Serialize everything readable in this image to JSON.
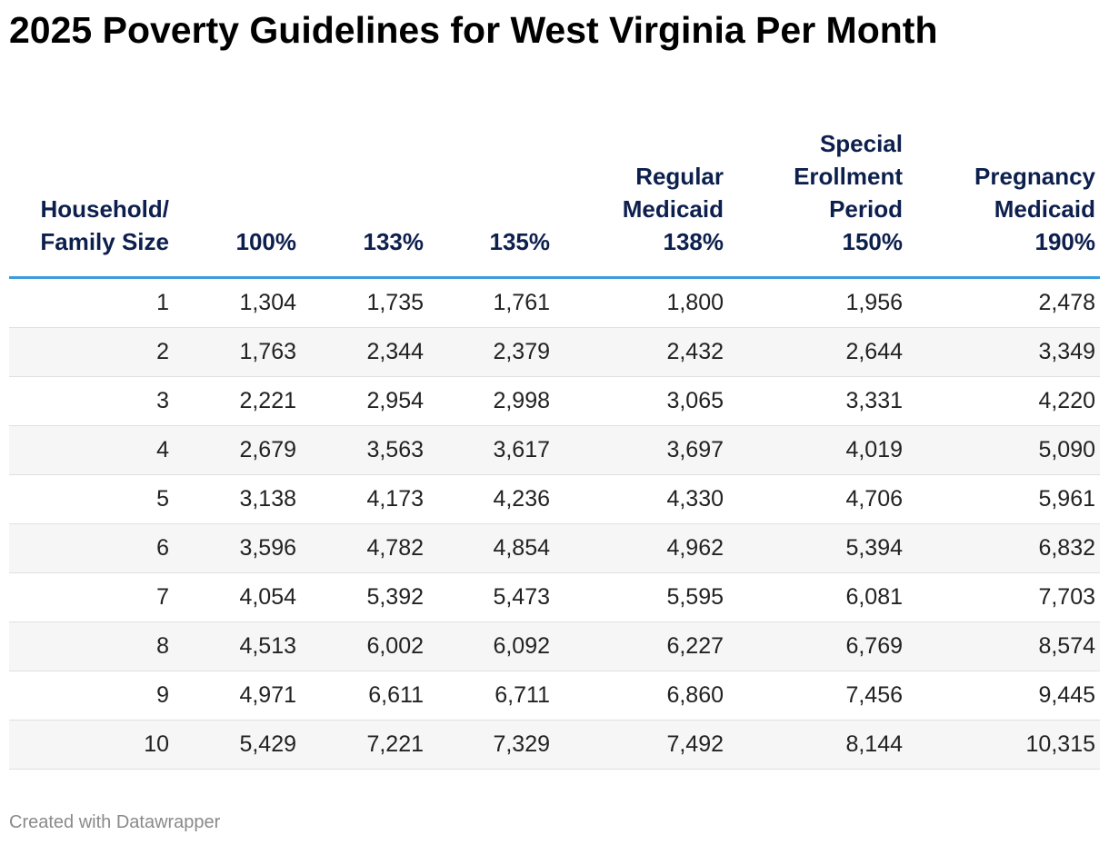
{
  "title": "2025 Poverty Guidelines for West Virginia Per Month",
  "table": {
    "header": [
      [
        "Household/",
        "Family Size"
      ],
      [
        "100%"
      ],
      [
        "133%"
      ],
      [
        "135%"
      ],
      [
        "Regular",
        "Medicaid",
        "138%"
      ],
      [
        "Special",
        "Erollment",
        "Period",
        "150%"
      ],
      [
        "Pregnancy",
        "Medicaid",
        "190%"
      ]
    ],
    "rows": [
      [
        "1",
        "1,304",
        "1,735",
        "1,761",
        "1,800",
        "1,956",
        "2,478"
      ],
      [
        "2",
        "1,763",
        "2,344",
        "2,379",
        "2,432",
        "2,644",
        "3,349"
      ],
      [
        "3",
        "2,221",
        "2,954",
        "2,998",
        "3,065",
        "3,331",
        "4,220"
      ],
      [
        "4",
        "2,679",
        "3,563",
        "3,617",
        "3,697",
        "4,019",
        "5,090"
      ],
      [
        "5",
        "3,138",
        "4,173",
        "4,236",
        "4,330",
        "4,706",
        "5,961"
      ],
      [
        "6",
        "3,596",
        "4,782",
        "4,854",
        "4,962",
        "5,394",
        "6,832"
      ],
      [
        "7",
        "4,054",
        "5,392",
        "5,473",
        "5,595",
        "6,081",
        "7,703"
      ],
      [
        "8",
        "4,513",
        "6,002",
        "6,092",
        "6,227",
        "6,769",
        "8,574"
      ],
      [
        "9",
        "4,971",
        "6,611",
        "6,711",
        "6,860",
        "7,456",
        "9,445"
      ],
      [
        "10",
        "5,429",
        "7,221",
        "7,329",
        "7,492",
        "8,144",
        "10,315"
      ]
    ]
  },
  "footer": "Created with Datawrapper"
}
